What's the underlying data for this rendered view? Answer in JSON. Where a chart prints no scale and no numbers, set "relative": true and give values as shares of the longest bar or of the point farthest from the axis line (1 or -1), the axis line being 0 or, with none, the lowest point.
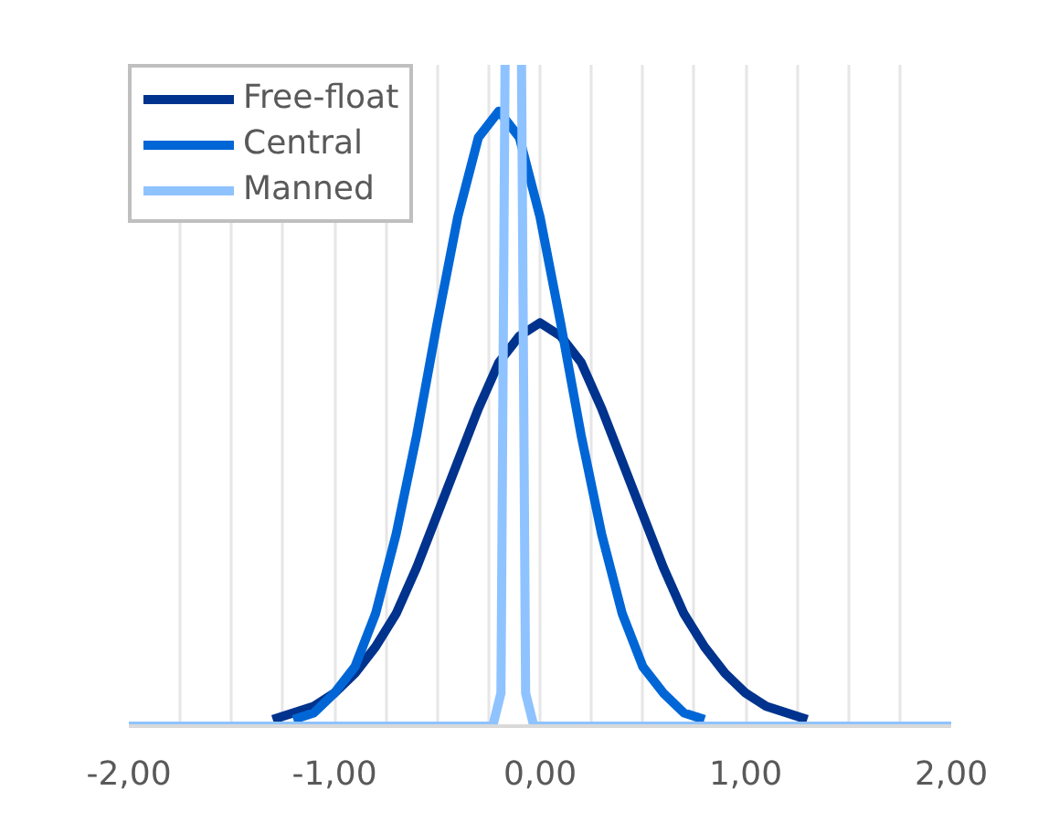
{
  "chart_data": {
    "type": "line",
    "relative": true,
    "x": [
      -1.3,
      -1.2,
      -1.1,
      -1.0,
      -0.9,
      -0.8,
      -0.7,
      -0.6,
      -0.5,
      -0.4,
      -0.3,
      -0.2,
      -0.1,
      0.0,
      0.1,
      0.2,
      0.3,
      0.4,
      0.5,
      0.6,
      0.7,
      0.8,
      0.9,
      1.0,
      1.1,
      1.2,
      1.3
    ],
    "series": [
      {
        "name": "Free-float",
        "color": "#00338d",
        "values": [
          0.01,
          0.02,
          0.03,
          0.05,
          0.08,
          0.12,
          0.17,
          0.24,
          0.32,
          0.4,
          0.48,
          0.55,
          0.59,
          0.61,
          0.59,
          0.55,
          0.48,
          0.4,
          0.32,
          0.24,
          0.17,
          0.12,
          0.08,
          0.05,
          0.03,
          0.02,
          0.01
        ]
      },
      {
        "name": "Central",
        "color": "#0066d6",
        "values": [
          null,
          0.01,
          0.02,
          0.05,
          0.09,
          0.17,
          0.29,
          0.44,
          0.61,
          0.77,
          0.89,
          0.93,
          0.89,
          0.77,
          0.61,
          0.44,
          0.29,
          0.17,
          0.09,
          0.05,
          0.02,
          0.01,
          null,
          null,
          null,
          null,
          null
        ]
      },
      {
        "name": "Manned",
        "color": "#8fc3ff",
        "x": [
          -2.0,
          -0.23,
          -0.19,
          -0.17,
          -0.13,
          -0.09,
          -0.07,
          -0.03,
          2.0
        ],
        "values": [
          0,
          0,
          0.05,
          1.0,
          null,
          1.0,
          0.05,
          0,
          0
        ]
      }
    ],
    "xlim": [
      -2,
      2
    ],
    "xticks": [
      {
        "value": -2,
        "label": "-2,00"
      },
      {
        "value": -1.75,
        "label": null
      },
      {
        "value": -1.5,
        "label": null
      },
      {
        "value": -1.25,
        "label": null
      },
      {
        "value": -1,
        "label": "-1,00"
      },
      {
        "value": -0.75,
        "label": null
      },
      {
        "value": -0.5,
        "label": null
      },
      {
        "value": -0.25,
        "label": null
      },
      {
        "value": 0,
        "label": "0,00"
      },
      {
        "value": 0.25,
        "label": null
      },
      {
        "value": 0.5,
        "label": null
      },
      {
        "value": 0.75,
        "label": null
      },
      {
        "value": 1,
        "label": "1,00"
      },
      {
        "value": 1.25,
        "label": null
      },
      {
        "value": 1.5,
        "label": null
      },
      {
        "value": 1.75,
        "label": null
      },
      {
        "value": 2,
        "label": "2,00"
      }
    ],
    "grid": "x",
    "legend": "top left"
  }
}
